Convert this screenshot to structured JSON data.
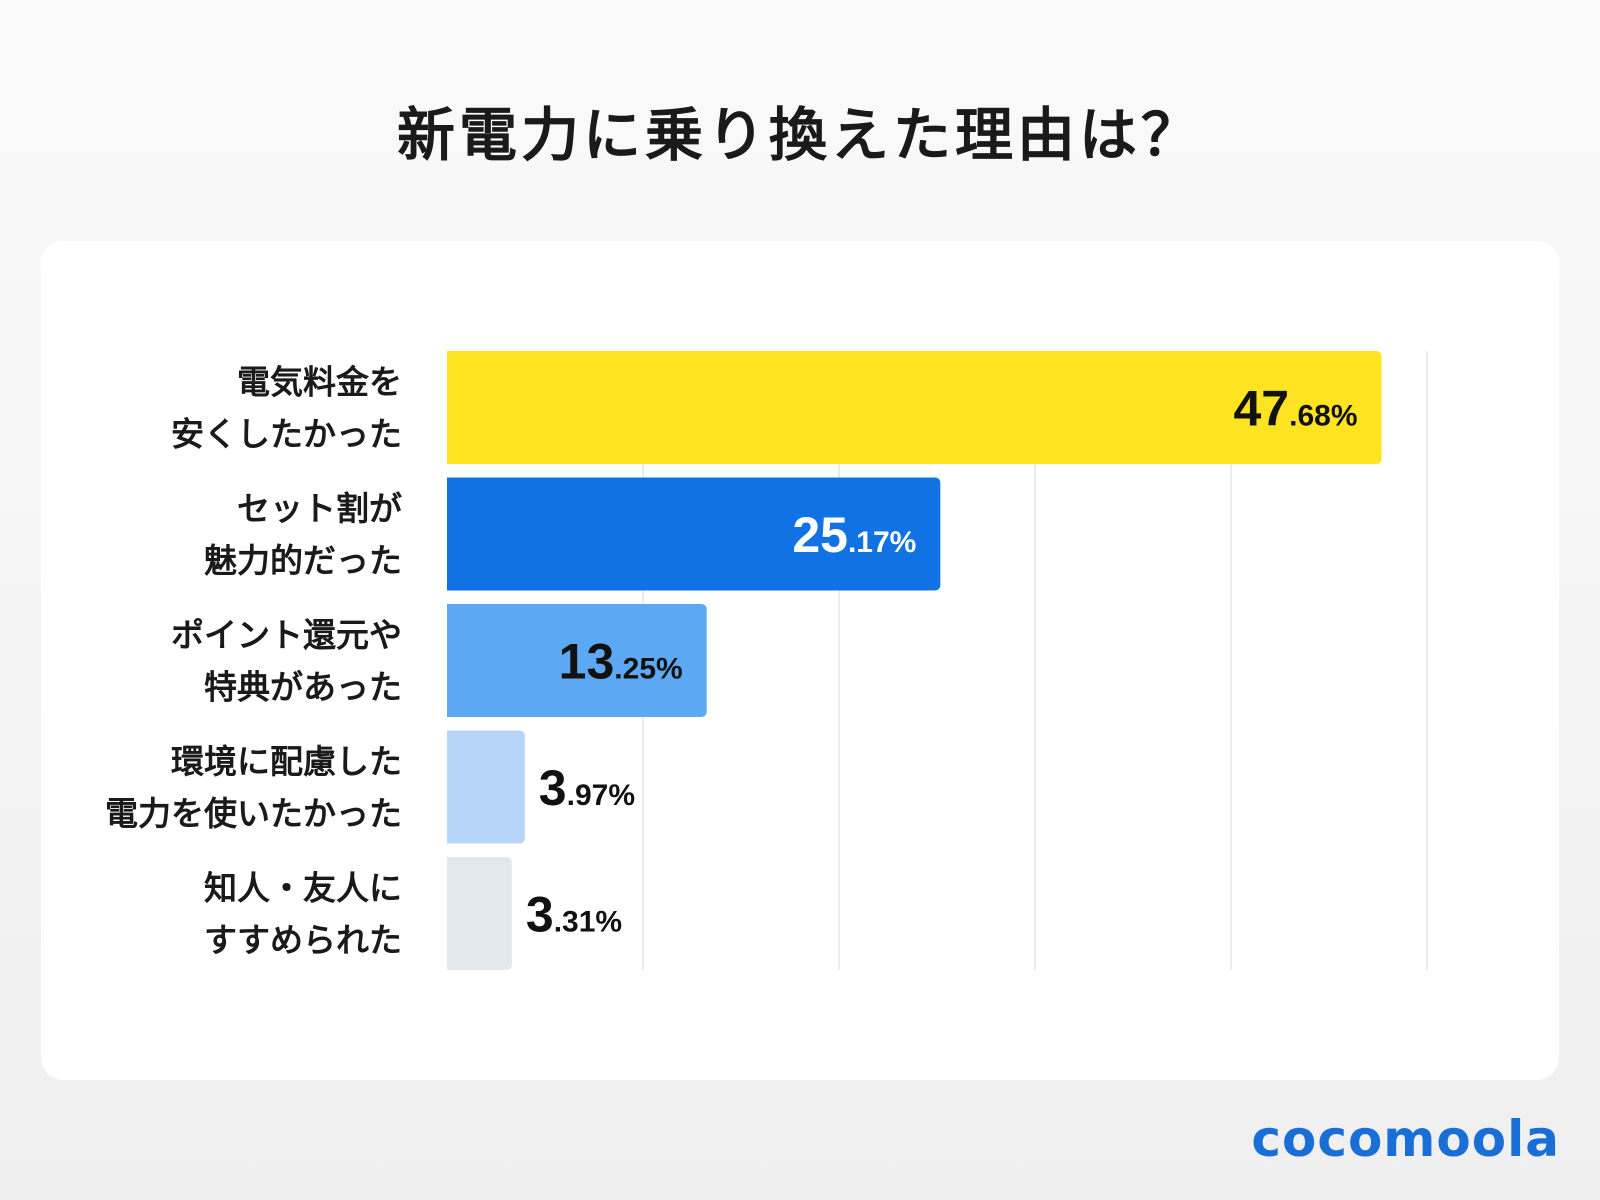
{
  "chart_data": {
    "type": "bar",
    "orientation": "horizontal",
    "title": "新電力に乗り換えた理由は？",
    "categories": [
      [
        "電気料金を",
        "安くしたかった"
      ],
      [
        "セット割が",
        "魅力的だった"
      ],
      [
        "ポイント還元や",
        "特典があった"
      ],
      [
        "環境に配慮した",
        "電力を使いたかった"
      ],
      [
        "知人・友人に",
        "すすめられた"
      ]
    ],
    "values": [
      47.68,
      25.17,
      13.25,
      3.97,
      3.31
    ],
    "value_labels": [
      [
        "47",
        ".68%"
      ],
      [
        "25",
        ".17%"
      ],
      [
        "13",
        ".25%"
      ],
      [
        "3",
        ".97%"
      ],
      [
        "3",
        ".31%"
      ]
    ],
    "colors": [
      "#FDE320",
      "#1173E3",
      "#5DA8F2",
      "#B6D5F8",
      "#E3E8EF"
    ],
    "label_colors": [
      "#111111",
      "#ffffff",
      "#111111",
      "#111111",
      "#111111"
    ],
    "xlim": [
      0,
      50
    ],
    "grid": true,
    "gridline_values": [
      10,
      20,
      30,
      40,
      50
    ],
    "axis_ticks_shown": false
  },
  "brand": {
    "logo": "cocomoola",
    "color": "#1a6fd6"
  }
}
